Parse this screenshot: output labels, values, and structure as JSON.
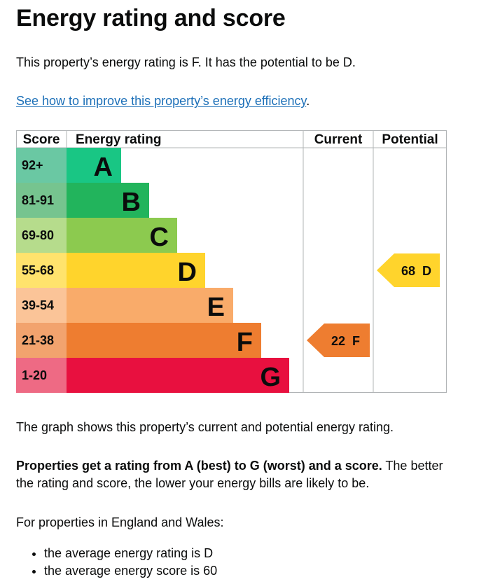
{
  "heading": "Energy rating and score",
  "intro": "This property’s energy rating is F. It has the potential to be D.",
  "improve_link": "See how to improve this property’s energy efficiency",
  "improve_suffix": ".",
  "table": {
    "headers": {
      "score": "Score",
      "rating": "Energy rating",
      "current": "Current",
      "potential": "Potential"
    },
    "bands": [
      {
        "score": "92+",
        "letter": "A",
        "color": "#19c684",
        "score_bg": "#6ac8a3"
      },
      {
        "score": "81-91",
        "letter": "B",
        "color": "#22b45c",
        "score_bg": "#76c48f"
      },
      {
        "score": "69-80",
        "letter": "C",
        "color": "#8cca4f",
        "score_bg": "#b6dc8c"
      },
      {
        "score": "55-68",
        "letter": "D",
        "color": "#ffd42c",
        "score_bg": "#ffe36d"
      },
      {
        "score": "39-54",
        "letter": "E",
        "color": "#f9ab6a",
        "score_bg": "#fbc498"
      },
      {
        "score": "21-38",
        "letter": "F",
        "color": "#ee7d30",
        "score_bg": "#f2a36e"
      },
      {
        "score": "1-20",
        "letter": "G",
        "color": "#e8103f",
        "score_bg": "#ee6a84"
      }
    ],
    "current": {
      "score": "22",
      "letter": "F",
      "band_index": 5,
      "color": "#ee7d30"
    },
    "potential": {
      "score": "68",
      "letter": "D",
      "band_index": 3,
      "color": "#ffd42c"
    }
  },
  "graph_description": "The graph shows this property’s current and potential energy rating.",
  "properties_bold": "Properties get a rating from A (best) to G (worst) and a score.",
  "properties_rest": " The better the rating and score, the lower your energy bills are likely to be.",
  "england_intro": "For properties in England and Wales:",
  "averages": [
    "the average energy rating is D",
    "the average energy score is 60"
  ]
}
